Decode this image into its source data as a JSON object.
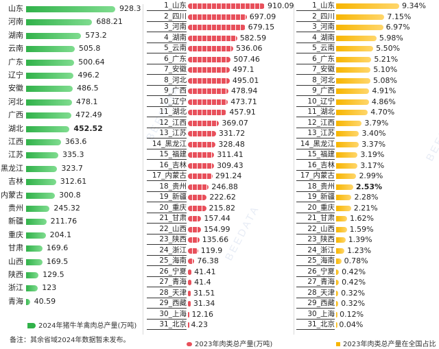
{
  "chart_data": [
    {
      "type": "bar",
      "orientation": "horizontal",
      "legend": "2024年猪牛羊禽肉总产量(万吨)",
      "categories": [
        "山东",
        "河南",
        "湖南",
        "云南",
        "广东",
        "辽宁",
        "安徽",
        "河北",
        "广西",
        "湖北",
        "江西",
        "江苏",
        "黑龙江",
        "吉林",
        "内蒙古",
        "贵州",
        "新疆",
        "重庆",
        "甘肃",
        "山西",
        "陕西",
        "浙江",
        "青海"
      ],
      "values": [
        928.3,
        688.21,
        573.2,
        505.8,
        500.64,
        496.2,
        486.5,
        478.1,
        472.49,
        452.52,
        363.6,
        335.3,
        323.7,
        312.61,
        300.8,
        245.32,
        211.76,
        204.1,
        169.6,
        169.5,
        129.5,
        123,
        40.59
      ],
      "value_labels": [
        "928.3",
        "688.21",
        "573.2",
        "505.8",
        "500.64",
        "496.2",
        "486.5",
        "478.1",
        "472.49",
        "452.52",
        "363.6",
        "335.3",
        "323.7",
        "312.61",
        "300.8",
        "245.32",
        "211.76",
        "204.1",
        "169.6",
        "169.5",
        "129.5",
        "123",
        "40.59"
      ],
      "color": "#31b24a"
    },
    {
      "type": "bar",
      "orientation": "horizontal",
      "legend": "2023年肉类总产量(万吨)",
      "categories": [
        "1_山东",
        "2_四川",
        "3_河南",
        "4_湖南",
        "5_云南",
        "6_广东",
        "7_安徽",
        "8_河北",
        "9_广西",
        "10_辽宁",
        "11_湖北",
        "12_江西",
        "13_江苏",
        "14_黑龙江",
        "15_福建",
        "16_吉林",
        "17_内蒙古",
        "18_贵州",
        "19_新疆",
        "20_重庆",
        "21_甘肃",
        "22_山西",
        "23_陕西",
        "24_浙江",
        "25_海南",
        "26_宁夏",
        "27_青海",
        "28_天津",
        "29_西藏",
        "30_上海",
        "31_北京"
      ],
      "values": [
        910.09,
        697.09,
        679.15,
        582.59,
        536.06,
        507.46,
        497.1,
        495.01,
        478.94,
        473.71,
        457.91,
        369.07,
        331.72,
        328.48,
        311.41,
        309.43,
        291.24,
        246.88,
        222.62,
        215.82,
        157.44,
        154.99,
        135.66,
        119.9,
        76.38,
        41.41,
        41.4,
        31.51,
        31.34,
        12.16,
        4.23
      ],
      "value_labels": [
        "910.09",
        "697.09",
        "679.15",
        "582.59",
        "536.06",
        "507.46",
        "497.1",
        "495.01",
        "478.94",
        "473.71",
        "457.91",
        "369.07",
        "331.72",
        "328.48",
        "311.41",
        "309.43",
        "291.24",
        "246.88",
        "222.62",
        "215.82",
        "157.44",
        "154.99",
        "135.66",
        "119.9",
        "76.38",
        "41.41",
        "41.4",
        "31.51",
        "31.34",
        "12.16",
        "4.23"
      ],
      "color": "#e8505b"
    },
    {
      "type": "bar",
      "orientation": "horizontal",
      "legend": "2023年肉类总产量在全国占比",
      "categories": [
        "1_山东",
        "2_四川",
        "3_河南",
        "4_湖南",
        "5_云南",
        "6_广东",
        "7_安徽",
        "8_河北",
        "9_广西",
        "10_辽宁",
        "11_湖北",
        "12_江西",
        "13_江苏",
        "14_黑龙江",
        "15_福建",
        "16_吉林",
        "17_内蒙古",
        "18_贵州",
        "19_新疆",
        "20_重庆",
        "21_甘肃",
        "22_山西",
        "23_陕西",
        "24_浙江",
        "25_海南",
        "26_宁夏",
        "27_青海",
        "28_天津",
        "29_西藏",
        "30_上海",
        "31_北京"
      ],
      "values": [
        9.34,
        7.15,
        6.97,
        5.98,
        5.5,
        5.21,
        5.1,
        5.08,
        4.91,
        4.86,
        4.7,
        3.79,
        3.4,
        3.37,
        3.19,
        3.17,
        2.99,
        2.53,
        2.28,
        2.21,
        1.62,
        1.59,
        1.39,
        1.23,
        0.78,
        0.42,
        0.42,
        0.32,
        0.32,
        0.12,
        0.04
      ],
      "value_labels": [
        "9.34%",
        "7.15%",
        "6.97%",
        "5.98%",
        "5.50%",
        "5.21%",
        "5.10%",
        "5.08%",
        "4.91%",
        "4.86%",
        "4.70%",
        "3.79%",
        "3.40%",
        "3.37%",
        "3.19%",
        "3.17%",
        "2.99%",
        "2.53%",
        "2.28%",
        "2.21%",
        "1.62%",
        "1.59%",
        "1.39%",
        "1.23%",
        "0.78%",
        "0.42%",
        "0.42%",
        "0.32%",
        "0.32%",
        "0.12%",
        "0.04%"
      ],
      "unit": "%",
      "color": "#f7b500"
    }
  ],
  "note": "备注：其余省域2024年数据暂未发布。",
  "watermark": "BEEDATA",
  "colors": {
    "green": "#31b24a",
    "red": "#e8505b",
    "yellow": "#f7b500"
  }
}
